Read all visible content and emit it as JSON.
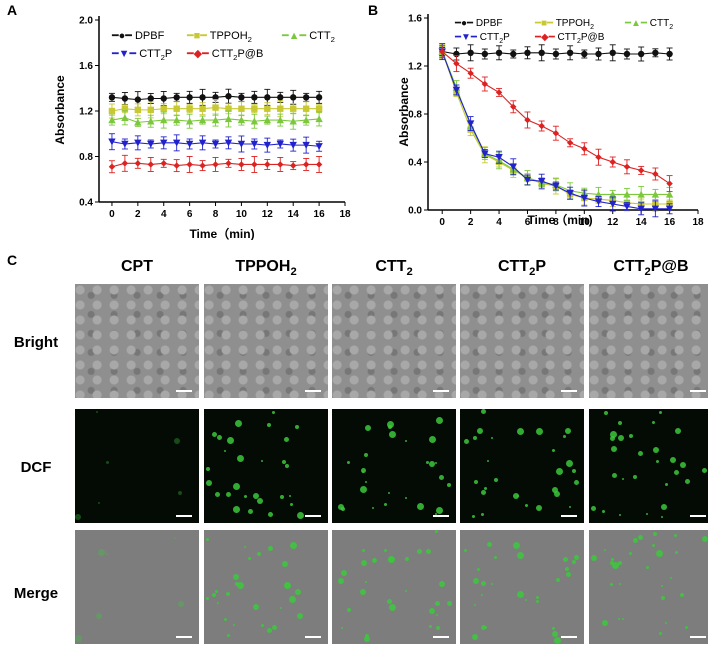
{
  "panels": {
    "a": "A",
    "b": "B",
    "c": "C"
  },
  "chart_data": [
    {
      "type": "line",
      "panel": "A",
      "xlabel": "Time（min)",
      "ylabel": "Absorbance",
      "xlim": [
        -1,
        18
      ],
      "ylim": [
        0.4,
        2.0
      ],
      "xticks": [
        "0",
        "2",
        "4",
        "6",
        "8",
        "10",
        "12",
        "14",
        "16",
        "18"
      ],
      "yticks": [
        "0.4",
        "0.8",
        "1.2",
        "1.6",
        "2.0"
      ],
      "x": [
        0,
        1,
        2,
        3,
        4,
        5,
        6,
        7,
        8,
        9,
        10,
        11,
        12,
        13,
        14,
        15,
        16
      ],
      "legend": "top-left",
      "series": [
        {
          "name": "DPBF",
          "color": "#111111",
          "marker": "circle",
          "values": [
            1.32,
            1.31,
            1.3,
            1.31,
            1.31,
            1.32,
            1.32,
            1.32,
            1.32,
            1.33,
            1.32,
            1.32,
            1.32,
            1.32,
            1.32,
            1.32,
            1.32
          ]
        },
        {
          "name": "TPPOH2",
          "color": "#c8c832",
          "marker": "square",
          "values": [
            1.2,
            1.22,
            1.21,
            1.21,
            1.22,
            1.22,
            1.22,
            1.22,
            1.23,
            1.22,
            1.22,
            1.22,
            1.22,
            1.22,
            1.22,
            1.22,
            1.22
          ]
        },
        {
          "name": "CTT2",
          "color": "#7cc83c",
          "marker": "triangle",
          "values": [
            1.12,
            1.14,
            1.1,
            1.11,
            1.12,
            1.12,
            1.11,
            1.12,
            1.12,
            1.13,
            1.12,
            1.11,
            1.12,
            1.12,
            1.11,
            1.12,
            1.13
          ]
        },
        {
          "name": "CTT2P",
          "color": "#2222cc",
          "marker": "triangle-down",
          "values": [
            0.93,
            0.91,
            0.92,
            0.91,
            0.92,
            0.92,
            0.91,
            0.92,
            0.91,
            0.92,
            0.91,
            0.91,
            0.9,
            0.91,
            0.9,
            0.9,
            0.89
          ]
        },
        {
          "name": "CTT2P@B",
          "color": "#dd2222",
          "marker": "diamond",
          "values": [
            0.71,
            0.74,
            0.74,
            0.73,
            0.74,
            0.72,
            0.73,
            0.72,
            0.73,
            0.74,
            0.73,
            0.73,
            0.73,
            0.73,
            0.72,
            0.73,
            0.73
          ]
        }
      ]
    },
    {
      "type": "line",
      "panel": "B",
      "xlabel": "Time（min)",
      "ylabel": "Absorbance",
      "xlim": [
        -1,
        18
      ],
      "ylim": [
        0.0,
        1.6
      ],
      "xticks": [
        "0",
        "2",
        "4",
        "6",
        "8",
        "10",
        "12",
        "14",
        "16",
        "18"
      ],
      "yticks": [
        "0.0",
        "0.4",
        "0.8",
        "1.2",
        "1.6"
      ],
      "x": [
        0,
        1,
        2,
        3,
        4,
        5,
        6,
        7,
        8,
        9,
        10,
        11,
        12,
        13,
        14,
        15,
        16
      ],
      "legend": "top",
      "series": [
        {
          "name": "DPBF",
          "color": "#111111",
          "marker": "circle",
          "values": [
            1.32,
            1.3,
            1.31,
            1.3,
            1.31,
            1.3,
            1.31,
            1.31,
            1.3,
            1.31,
            1.3,
            1.3,
            1.31,
            1.3,
            1.3,
            1.31,
            1.3
          ]
        },
        {
          "name": "TPPOH2",
          "color": "#c8c832",
          "marker": "square",
          "values": [
            1.32,
            0.98,
            0.67,
            0.46,
            0.4,
            0.33,
            0.27,
            0.22,
            0.2,
            0.13,
            0.1,
            0.09,
            0.08,
            0.06,
            0.05,
            0.05,
            0.05
          ]
        },
        {
          "name": "CTT2",
          "color": "#7cc83c",
          "marker": "triangle",
          "values": [
            1.32,
            1.02,
            0.7,
            0.47,
            0.41,
            0.34,
            0.27,
            0.23,
            0.21,
            0.16,
            0.14,
            0.13,
            0.13,
            0.13,
            0.13,
            0.13,
            0.13
          ]
        },
        {
          "name": "CTT2P",
          "color": "#2222cc",
          "marker": "triangle-down",
          "values": [
            1.32,
            1.0,
            0.72,
            0.47,
            0.44,
            0.36,
            0.25,
            0.24,
            0.2,
            0.14,
            0.1,
            0.07,
            0.05,
            0.03,
            0.01,
            0.01,
            0.01
          ]
        },
        {
          "name": "CTT2P@B",
          "color": "#dd2222",
          "marker": "diamond",
          "values": [
            1.32,
            1.22,
            1.14,
            1.05,
            0.98,
            0.86,
            0.75,
            0.7,
            0.64,
            0.56,
            0.51,
            0.44,
            0.4,
            0.36,
            0.33,
            0.3,
            0.22
          ]
        }
      ]
    }
  ],
  "legend_labels": {
    "dpbf": "DPBF",
    "tppoh_base": "TPPOH",
    "tppoh_sub": "2",
    "ctt_base": "CTT",
    "ctt_sub": "2",
    "cttp_base": "CTT",
    "cttp_sub": "2",
    "cttp_tail": "P",
    "cttpb_base": "CTT",
    "cttpb_sub": "2",
    "cttpb_tail": "P@B"
  },
  "microscopy": {
    "columns": [
      {
        "base": "CPT",
        "sub": "",
        "tail": ""
      },
      {
        "base": "TPPOH",
        "sub": "2",
        "tail": ""
      },
      {
        "base": "CTT",
        "sub": "2",
        "tail": ""
      },
      {
        "base": "CTT",
        "sub": "2",
        "tail": "P"
      },
      {
        "base": "CTT",
        "sub": "2",
        "tail": "P@B"
      }
    ],
    "rows": [
      "Bright",
      "DCF",
      "Merge"
    ]
  },
  "colors": {
    "dcf_green": "#3cc83c",
    "background": "#ffffff"
  }
}
